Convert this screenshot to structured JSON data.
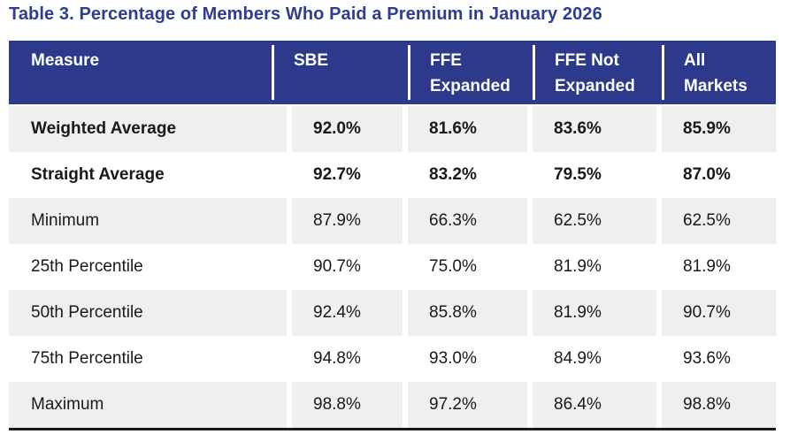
{
  "title": "Table 3. Percentage of Members Who Paid a Premium in January 2026",
  "colors": {
    "title_text": "#2d3d95",
    "header_bg": "#2d3a8c",
    "header_text": "#ffffff",
    "row_alt_bg": "#efefef",
    "body_text": "#191919",
    "bottom_border": "#1a1a1a"
  },
  "table": {
    "columns": [
      {
        "line1": "Measure",
        "line2": ""
      },
      {
        "line1": "SBE",
        "line2": ""
      },
      {
        "line1": "FFE",
        "line2": "Expanded"
      },
      {
        "line1": "FFE Not",
        "line2": "Expanded"
      },
      {
        "line1": "All",
        "line2": "Markets"
      }
    ],
    "rows": [
      {
        "label": "Weighted Average",
        "bold": true,
        "values": [
          "92.0%",
          "81.6%",
          "83.6%",
          "85.9%"
        ]
      },
      {
        "label": "Straight Average",
        "bold": true,
        "values": [
          "92.7%",
          "83.2%",
          "79.5%",
          "87.0%"
        ]
      },
      {
        "label": "Minimum",
        "bold": false,
        "values": [
          "87.9%",
          "66.3%",
          "62.5%",
          "62.5%"
        ]
      },
      {
        "label": "25th Percentile",
        "bold": false,
        "values": [
          "90.7%",
          "75.0%",
          "81.9%",
          "81.9%"
        ]
      },
      {
        "label": "50th Percentile",
        "bold": false,
        "values": [
          "92.4%",
          "85.8%",
          "81.9%",
          "90.7%"
        ]
      },
      {
        "label": "75th Percentile",
        "bold": false,
        "values": [
          "94.8%",
          "93.0%",
          "84.9%",
          "93.6%"
        ]
      },
      {
        "label": "Maximum",
        "bold": false,
        "values": [
          "98.8%",
          "97.2%",
          "86.4%",
          "98.8%"
        ]
      }
    ]
  }
}
